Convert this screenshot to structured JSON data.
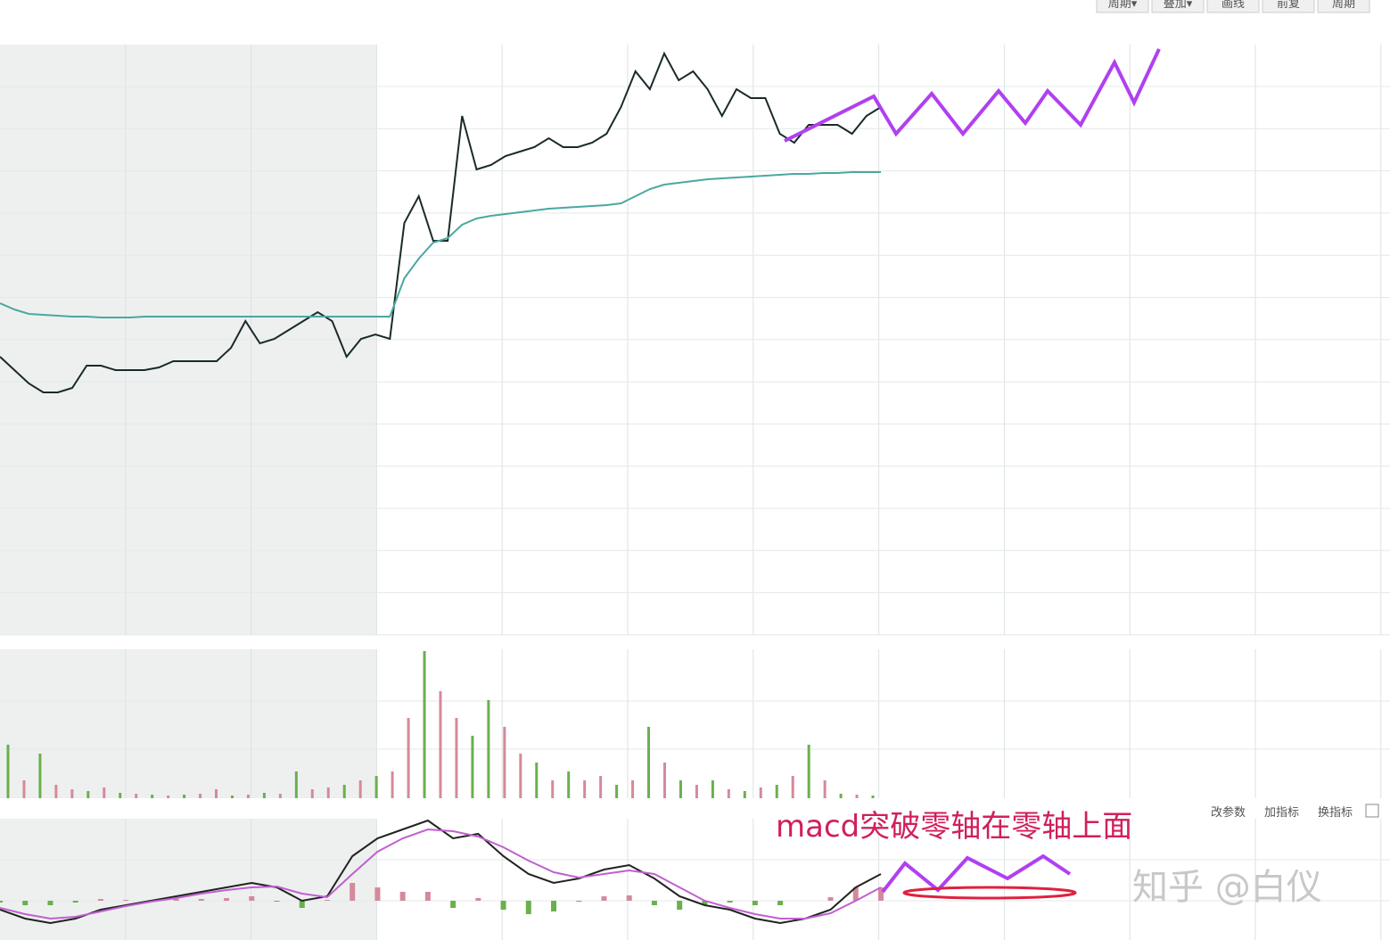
{
  "toolbar": {
    "buttons": [
      "周期▾",
      "叠加▾",
      "画线",
      "前复",
      "周期"
    ]
  },
  "macd_toolbar": {
    "buttons": [
      "改参数",
      "加指标",
      "换指标"
    ]
  },
  "annotation": "macd突破零轴在零轴上面",
  "watermark": "知乎 @白仪",
  "chart_data": [
    {
      "type": "line",
      "ylim": [
        0,
        662
      ],
      "series": [
        {
          "color": "#1a2a2a",
          "values": [
            312,
            297,
            282,
            272,
            272,
            277,
            302,
            302,
            297,
            297,
            297,
            300,
            307,
            307,
            307,
            307,
            322,
            352,
            327,
            332,
            342,
            352,
            362,
            352,
            312,
            332,
            337,
            332,
            462,
            492,
            442,
            442,
            582,
            522,
            527,
            537,
            542,
            547,
            557,
            547,
            547,
            552,
            562,
            592,
            632,
            612,
            652,
            622,
            632,
            612,
            582,
            612,
            602,
            602,
            562,
            552,
            572,
            572,
            572,
            562,
            582,
            592
          ]
        },
        {
          "color": "#4aa8a0",
          "values": [
            372,
            365,
            360,
            359,
            358,
            357,
            357,
            356,
            356,
            356,
            357,
            357,
            357,
            357,
            357,
            357,
            357,
            357,
            357,
            357,
            357,
            357,
            357,
            357,
            357,
            357,
            357,
            357,
            400,
            422,
            440,
            445,
            460,
            467,
            470,
            472,
            474,
            476,
            478,
            479,
            480,
            481,
            482,
            484,
            492,
            500,
            505,
            507,
            509,
            511,
            512,
            513,
            514,
            515,
            516,
            517,
            517,
            518,
            518,
            519,
            519,
            519
          ]
        }
      ]
    },
    {
      "type": "bar",
      "ylim": [
        0,
        167
      ],
      "values": [
        60,
        20,
        50,
        15,
        10,
        8,
        12,
        6,
        5,
        4,
        3,
        4,
        5,
        10,
        3,
        4,
        6,
        5,
        30,
        10,
        12,
        15,
        20,
        25,
        30,
        90,
        165,
        120,
        90,
        70,
        110,
        80,
        50,
        40,
        20,
        30,
        20,
        25,
        15,
        20,
        80,
        40,
        20,
        15,
        20,
        10,
        8,
        12,
        15,
        25,
        60,
        20,
        5,
        4,
        3
      ],
      "colors": [
        "#6ab04c",
        "#d48a9a",
        "#6ab04c",
        "#d48a9a",
        "#d48a9a",
        "#6ab04c",
        "#d48a9a",
        "#6ab04c",
        "#d48a9a",
        "#6ab04c",
        "#d48a9a",
        "#6ab04c",
        "#d48a9a",
        "#d48a9a",
        "#6ab04c",
        "#d48a9a",
        "#6ab04c",
        "#d48a9a",
        "#6ab04c",
        "#d48a9a",
        "#d48a9a",
        "#6ab04c",
        "#d48a9a",
        "#6ab04c",
        "#d48a9a",
        "#d48a9a",
        "#6ab04c",
        "#d48a9a",
        "#d48a9a",
        "#6ab04c",
        "#6ab04c",
        "#d48a9a",
        "#d48a9a",
        "#6ab04c",
        "#d48a9a",
        "#6ab04c",
        "#d48a9a",
        "#d48a9a",
        "#6ab04c",
        "#d48a9a",
        "#6ab04c",
        "#d48a9a",
        "#6ab04c",
        "#d48a9a",
        "#6ab04c",
        "#d48a9a",
        "#6ab04c",
        "#d48a9a",
        "#6ab04c",
        "#d48a9a",
        "#6ab04c",
        "#d48a9a",
        "#6ab04c",
        "#d48a9a",
        "#6ab04c"
      ]
    },
    {
      "type": "macd",
      "ylim": [
        -44,
        92
      ],
      "positive_color": "#d48a9a",
      "negative_color": "#6ab04c",
      "bars": [
        -2,
        -5,
        -5,
        -2,
        2,
        1,
        1,
        2,
        2,
        3,
        5,
        -1,
        -8,
        1,
        20,
        15,
        10,
        10,
        -8,
        3,
        -10,
        -15,
        -12,
        -1,
        5,
        6,
        -5,
        -10,
        -5,
        -2,
        -5,
        -5,
        0,
        4,
        15,
        15
      ],
      "series": [
        {
          "color": "#222",
          "values": [
            -10,
            -20,
            -25,
            -20,
            -10,
            -5,
            0,
            5,
            10,
            15,
            20,
            15,
            0,
            5,
            50,
            70,
            80,
            90,
            70,
            75,
            50,
            30,
            20,
            25,
            35,
            40,
            25,
            5,
            -5,
            -10,
            -20,
            -25,
            -20,
            -10,
            15,
            30
          ]
        },
        {
          "color": "#c060d0",
          "values": [
            -8,
            -15,
            -20,
            -18,
            -12,
            -6,
            -1,
            3,
            8,
            12,
            15,
            16,
            8,
            4,
            30,
            55,
            70,
            80,
            78,
            72,
            60,
            45,
            32,
            26,
            30,
            34,
            30,
            15,
            0,
            -8,
            -15,
            -20,
            -20,
            -14,
            0,
            15
          ]
        }
      ]
    }
  ]
}
